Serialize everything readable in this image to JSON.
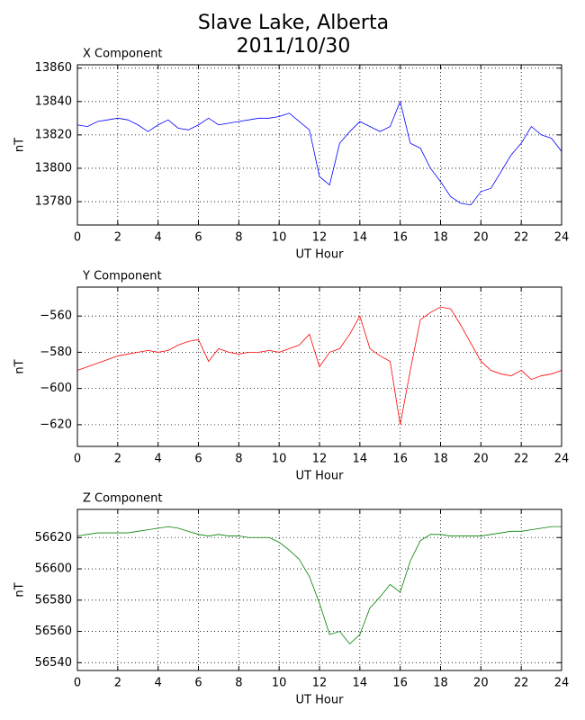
{
  "title": "Slave Lake, Alberta",
  "subtitle": "2011/10/30",
  "chart_data": [
    {
      "type": "line",
      "title": "X Component",
      "xlabel": "UT Hour",
      "ylabel": "nT",
      "color": "#0000ff",
      "grid": true,
      "xlim": [
        0,
        24
      ],
      "xticks": [
        0,
        2,
        4,
        6,
        8,
        10,
        12,
        14,
        16,
        18,
        20,
        22,
        24
      ],
      "ylim": [
        13766,
        13862
      ],
      "yticks": [
        13780,
        13800,
        13820,
        13840,
        13860
      ],
      "x": [
        0,
        0.5,
        1,
        1.5,
        2,
        2.5,
        3,
        3.5,
        4,
        4.5,
        5,
        5.5,
        6,
        6.5,
        7,
        7.5,
        8,
        8.5,
        9,
        9.5,
        10,
        10.5,
        11,
        11.5,
        12,
        12.5,
        13,
        13.5,
        14,
        14.5,
        15,
        15.5,
        16,
        16.5,
        17,
        17.5,
        18,
        18.5,
        19,
        19.5,
        20,
        20.5,
        21,
        21.5,
        22,
        22.5,
        23,
        23.5,
        24
      ],
      "values": [
        13826,
        13825,
        13828,
        13829,
        13830,
        13829,
        13826,
        13822,
        13826,
        13829,
        13824,
        13823,
        13826,
        13830,
        13826,
        13827,
        13828,
        13829,
        13830,
        13830,
        13831,
        13833,
        13828,
        13823,
        13795,
        13790,
        13815,
        13822,
        13828,
        13825,
        13822,
        13825,
        13840,
        13815,
        13812,
        13800,
        13792,
        13783,
        13779,
        13778,
        13786,
        13788,
        13798,
        13808,
        13815,
        13825,
        13820,
        13818,
        13810
      ]
    },
    {
      "type": "line",
      "title": "Y Component",
      "xlabel": "UT Hour",
      "ylabel": "nT",
      "color": "#ff0000",
      "grid": true,
      "xlim": [
        0,
        24
      ],
      "xticks": [
        0,
        2,
        4,
        6,
        8,
        10,
        12,
        14,
        16,
        18,
        20,
        22,
        24
      ],
      "ylim": [
        -632,
        -544
      ],
      "yticks": [
        {
          "value": -620,
          "label": "−620"
        },
        {
          "value": -600,
          "label": "−600"
        },
        {
          "value": -580,
          "label": "−580"
        },
        {
          "value": -560,
          "label": "−560"
        }
      ],
      "x": [
        0,
        0.5,
        1,
        1.5,
        2,
        2.5,
        3,
        3.5,
        4,
        4.5,
        5,
        5.5,
        6,
        6.5,
        7,
        7.5,
        8,
        8.5,
        9,
        9.5,
        10,
        10.5,
        11,
        11.5,
        12,
        12.5,
        13,
        13.5,
        14,
        14.5,
        15,
        15.5,
        16,
        16.5,
        17,
        17.5,
        18,
        18.5,
        19,
        19.5,
        20,
        20.5,
        21,
        21.5,
        22,
        22.5,
        23,
        23.5,
        24
      ],
      "values": [
        -590,
        -588,
        -586,
        -584,
        -582,
        -581,
        -580,
        -579,
        -580,
        -579,
        -576,
        -574,
        -573,
        -585,
        -578,
        -580,
        -581,
        -580,
        -580,
        -579,
        -580,
        -578,
        -576,
        -570,
        -588,
        -580,
        -578,
        -570,
        -560,
        -578,
        -582,
        -585,
        -620,
        -590,
        -562,
        -558,
        -555,
        -556,
        -565,
        -575,
        -585,
        -590,
        -592,
        -593,
        -590,
        -595,
        -593,
        -592,
        -590
      ]
    },
    {
      "type": "line",
      "title": "Z Component",
      "xlabel": "UT Hour",
      "ylabel": "nT",
      "color": "#008000",
      "grid": true,
      "xlim": [
        0,
        24
      ],
      "xticks": [
        0,
        2,
        4,
        6,
        8,
        10,
        12,
        14,
        16,
        18,
        20,
        22,
        24
      ],
      "ylim": [
        56535,
        56638
      ],
      "yticks": [
        56540,
        56560,
        56580,
        56600,
        56620
      ],
      "x": [
        0,
        0.5,
        1,
        1.5,
        2,
        2.5,
        3,
        3.5,
        4,
        4.5,
        5,
        5.5,
        6,
        6.5,
        7,
        7.5,
        8,
        8.5,
        9,
        9.5,
        10,
        10.5,
        11,
        11.5,
        12,
        12.5,
        13,
        13.5,
        14,
        14.5,
        15,
        15.5,
        16,
        16.5,
        17,
        17.5,
        18,
        18.5,
        19,
        19.5,
        20,
        20.5,
        21,
        21.5,
        22,
        22.5,
        23,
        23.5,
        24
      ],
      "values": [
        56621,
        56622,
        56623,
        56623,
        56623,
        56623,
        56624,
        56625,
        56626,
        56627,
        56626,
        56624,
        56622,
        56621,
        56622,
        56621,
        56621,
        56620,
        56620,
        56620,
        56617,
        56612,
        56606,
        56595,
        56578,
        56558,
        56560,
        56552,
        56558,
        56575,
        56582,
        56590,
        56585,
        56605,
        56618,
        56622,
        56622,
        56621,
        56621,
        56621,
        56621,
        56622,
        56623,
        56624,
        56624,
        56625,
        56626,
        56627,
        56627
      ]
    }
  ]
}
